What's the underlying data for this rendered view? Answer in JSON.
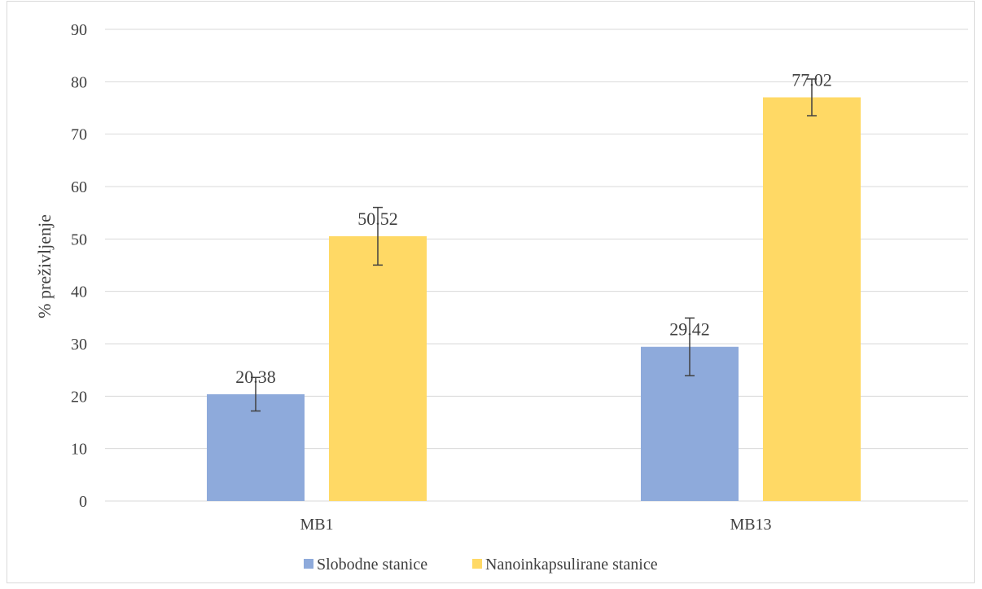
{
  "chart_data": {
    "type": "bar",
    "title": "",
    "xlabel": "",
    "ylabel": "% preživljenje",
    "ylim": [
      0,
      90
    ],
    "yticks": [
      0,
      10,
      20,
      30,
      40,
      50,
      60,
      70,
      80,
      90
    ],
    "grid": true,
    "legend_position": "bottom",
    "categories": [
      "MB1",
      "MB13"
    ],
    "series": [
      {
        "name": "Slobodne stanice",
        "color": "#8eaadb",
        "values": [
          20.38,
          29.42
        ],
        "labels": [
          "20.38",
          "29.42"
        ],
        "error": [
          3.2,
          5.5
        ]
      },
      {
        "name": "Nanoinkapsulirane stanice",
        "color": "#ffd965",
        "values": [
          50.52,
          77.02
        ],
        "labels": [
          "50.52",
          "77.02"
        ],
        "error": [
          5.5,
          3.5
        ]
      }
    ]
  }
}
